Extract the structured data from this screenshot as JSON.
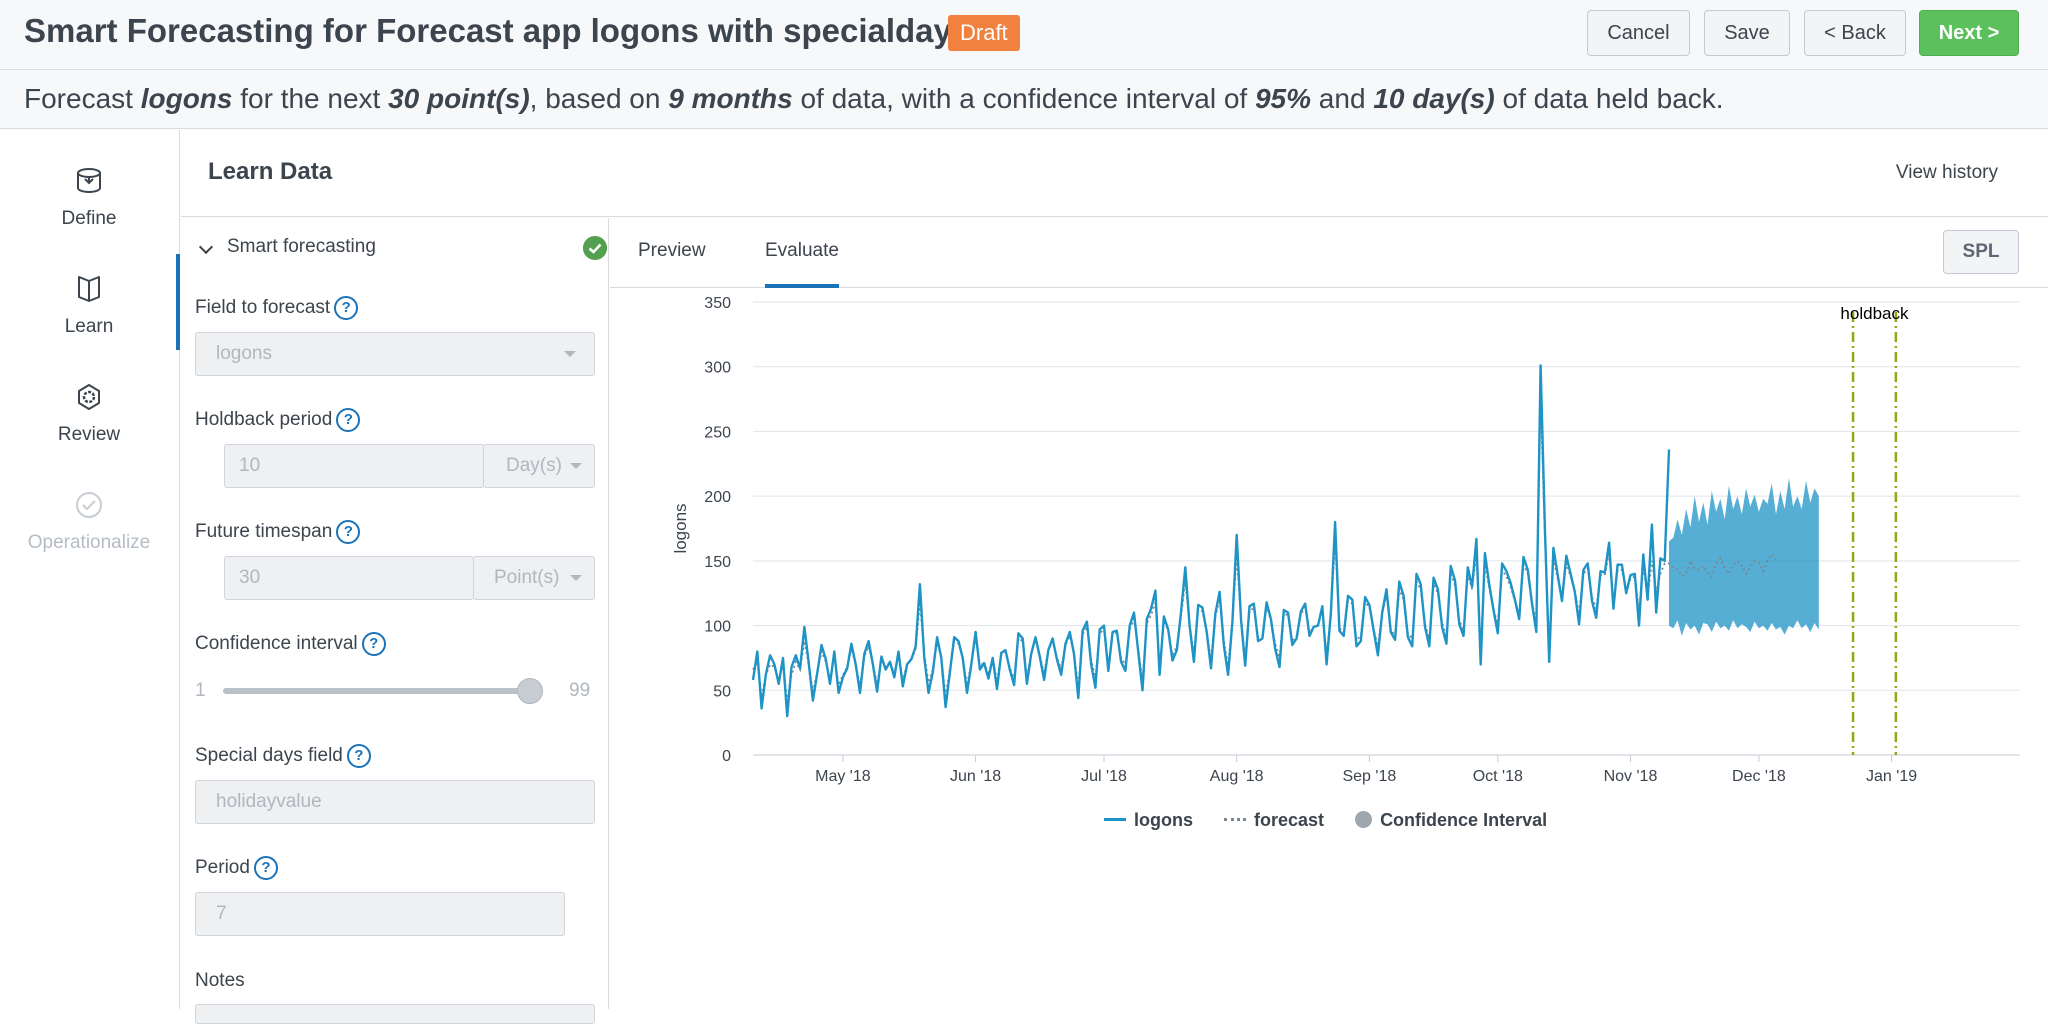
{
  "header": {
    "title": "Smart Forecasting for Forecast app logons with specialdays",
    "badge": "Draft",
    "buttons": {
      "cancel": "Cancel",
      "save": "Save",
      "back": "< Back",
      "next": "Next >"
    }
  },
  "summary": {
    "p1": "Forecast ",
    "field": "logons",
    "p2": " for the next ",
    "points": "30 point(s)",
    "p3": ", based on ",
    "months": "9 months",
    "p4": " of data, with a confidence interval of ",
    "ci": "95%",
    "p5": " and ",
    "holdback": "10 day(s)",
    "p6": " of data held back."
  },
  "nav": {
    "items": [
      {
        "label": "Define",
        "icon": "database-icon"
      },
      {
        "label": "Learn",
        "icon": "book-icon"
      },
      {
        "label": "Review",
        "icon": "gear-icon"
      },
      {
        "label": "Operationalize",
        "icon": "check-circle-icon"
      }
    ],
    "active": "Learn"
  },
  "section": {
    "title": "Learn Data",
    "view_history": "View history"
  },
  "form": {
    "accordion_label": "Smart forecasting",
    "field_to_forecast": {
      "label": "Field to forecast",
      "value": "logons"
    },
    "holdback_period": {
      "label": "Holdback period",
      "value": "10",
      "unit": "Day(s)"
    },
    "future_timespan": {
      "label": "Future timespan",
      "value": "30",
      "unit": "Point(s)"
    },
    "confidence_interval": {
      "label": "Confidence interval",
      "min": "1",
      "max": "99",
      "value": 95
    },
    "special_days_field": {
      "label": "Special days field",
      "value": "holidayvalue"
    },
    "period": {
      "label": "Period",
      "value": "7"
    },
    "notes": {
      "label": "Notes"
    },
    "help_glyph": "?"
  },
  "tabs": {
    "items": [
      "Preview",
      "Evaluate"
    ],
    "active": "Evaluate",
    "spl": "SPL"
  },
  "colors": {
    "accent": "#1a73b8",
    "next": "#5cc05c",
    "draft": "#f1813f",
    "series": "#1e93c6",
    "holdback_line": "#8cab16",
    "ci_fill": "#1e93c6"
  },
  "chart_data": {
    "type": "line",
    "ylabel": "logons",
    "ylim": [
      0,
      350
    ],
    "yticks": [
      "0",
      "50",
      "100",
      "150",
      "200",
      "250",
      "300",
      "350"
    ],
    "xticks": [
      "May '18",
      "Jun '18",
      "Jul '18",
      "Aug '18",
      "Sep '18",
      "Oct '18",
      "Nov '18",
      "Dec '18",
      "Jan '19"
    ],
    "annotation": "holdback",
    "legend": [
      "logons",
      "forecast",
      "Confidence Interval"
    ],
    "x_start": "2018-04-10",
    "holdback_start": "2018-12-23",
    "holdback_end": "2019-01-02",
    "x_end": "2019-01-31",
    "series": [
      {
        "name": "logons",
        "values": [
          58,
          80,
          36,
          62,
          77,
          70,
          55,
          75,
          30,
          68,
          77,
          67,
          99,
          72,
          42,
          63,
          85,
          74,
          55,
          80,
          48,
          60,
          67,
          86,
          70,
          48,
          78,
          88,
          70,
          49,
          76,
          66,
          72,
          60,
          80,
          53,
          70,
          74,
          84,
          132,
          76,
          48,
          64,
          91,
          75,
          37,
          64,
          91,
          88,
          75,
          48,
          70,
          95,
          66,
          71,
          59,
          75,
          51,
          79,
          81,
          66,
          54,
          94,
          90,
          55,
          78,
          91,
          76,
          58,
          81,
          90,
          74,
          62,
          86,
          95,
          78,
          44,
          96,
          103,
          70,
          52,
          97,
          100,
          65,
          95,
          96,
          72,
          65,
          100,
          110,
          80,
          50,
          105,
          113,
          127,
          62,
          107,
          97,
          73,
          81,
          110,
          145,
          100,
          72,
          116,
          114,
          95,
          67,
          109,
          126,
          85,
          62,
          103,
          170,
          105,
          69,
          115,
          117,
          88,
          90,
          118,
          105,
          82,
          68,
          112,
          110,
          85,
          90,
          111,
          117,
          92,
          99,
          100,
          115,
          70,
          110,
          180,
          96,
          92,
          123,
          120,
          84,
          88,
          122,
          116,
          96,
          77,
          110,
          128,
          95,
          89,
          134,
          123,
          91,
          84,
          140,
          132,
          99,
          84,
          137,
          128,
          99,
          86,
          146,
          135,
          101,
          92,
          145,
          130,
          167,
          70,
          156,
          132,
          112,
          94,
          148,
          142,
          133,
          120,
          105,
          153,
          143,
          117,
          95,
          301,
          175,
          72,
          160,
          139,
          119,
          154,
          140,
          126,
          101,
          143,
          148,
          119,
          106,
          142,
          141,
          164,
          113,
          147,
          147,
          125,
          139,
          140,
          100,
          155,
          120,
          178,
          110,
          152,
          150,
          236
        ]
      },
      {
        "name": "forecast",
        "values": [
          66,
          72,
          45,
          62,
          70,
          68,
          57,
          70,
          42,
          62,
          72,
          66,
          88,
          70,
          49,
          64,
          80,
          72,
          58,
          76,
          54,
          62,
          68,
          82,
          70,
          54,
          76,
          84,
          70,
          55,
          74,
          68,
          72,
          63,
          78,
          58,
          70,
          74,
          82,
          118,
          78,
          56,
          66,
          88,
          75,
          46,
          66,
          88,
          86,
          75,
          54,
          71,
          91,
          68,
          72,
          62,
          75,
          57,
          78,
          80,
          68,
          58,
          90,
          88,
          60,
          78,
          89,
          77,
          63,
          81,
          88,
          75,
          67,
          85,
          92,
          79,
          52,
          93,
          99,
          73,
          60,
          94,
          97,
          69,
          93,
          94,
          75,
          70,
          97,
          105,
          82,
          58,
          102,
          108,
          118,
          68,
          104,
          96,
          77,
          84,
          107,
          134,
          100,
          78,
          112,
          111,
          96,
          73,
          107,
          120,
          88,
          69,
          102,
          155,
          104,
          75,
          112,
          113,
          91,
          92,
          115,
          104,
          86,
          75,
          109,
          108,
          88,
          92,
          109,
          114,
          94,
          99,
          100,
          112,
          78,
          109,
          165,
          98,
          95,
          119,
          117,
          89,
          92,
          118,
          114,
          97,
          84,
          109,
          124,
          97,
          92,
          128,
          120,
          94,
          90,
          134,
          128,
          101,
          90,
          132,
          125,
          102,
          92,
          140,
          131,
          104,
          97,
          139,
          128,
          155,
          82,
          148,
          129,
          113,
          100,
          143,
          138,
          130,
          119,
          110,
          147,
          140,
          118,
          103,
          275,
          168,
          85,
          152,
          136,
          123,
          148,
          138,
          127,
          109,
          140,
          144,
          122,
          113,
          139,
          139,
          156,
          117,
          143,
          143,
          128,
          136,
          138,
          113,
          146,
          122,
          150,
          126,
          140,
          148,
          148,
          145,
          143,
          138,
          140,
          150,
          144,
          143,
          146,
          141,
          138,
          148,
          152,
          144,
          140,
          147,
          150,
          146,
          140,
          145,
          150,
          149,
          142,
          150,
          155,
          151
        ]
      }
    ],
    "confidence_interval": {
      "lower": [
        100,
        98,
        104,
        92,
        102,
        97,
        100,
        93,
        102,
        101,
        95,
        103,
        98,
        100,
        96,
        104,
        98,
        101,
        99,
        95,
        103,
        98,
        100,
        96,
        102,
        97,
        99,
        93,
        100,
        98,
        104,
        98,
        101,
        95,
        102,
        97
      ],
      "upper": [
        165,
        168,
        182,
        170,
        190,
        176,
        200,
        180,
        195,
        178,
        204,
        188,
        198,
        182,
        208,
        190,
        200,
        186,
        206,
        192,
        201,
        188,
        198,
        194,
        210,
        186,
        204,
        190,
        214,
        192,
        200,
        190,
        212,
        195,
        206,
        200
      ]
    }
  }
}
